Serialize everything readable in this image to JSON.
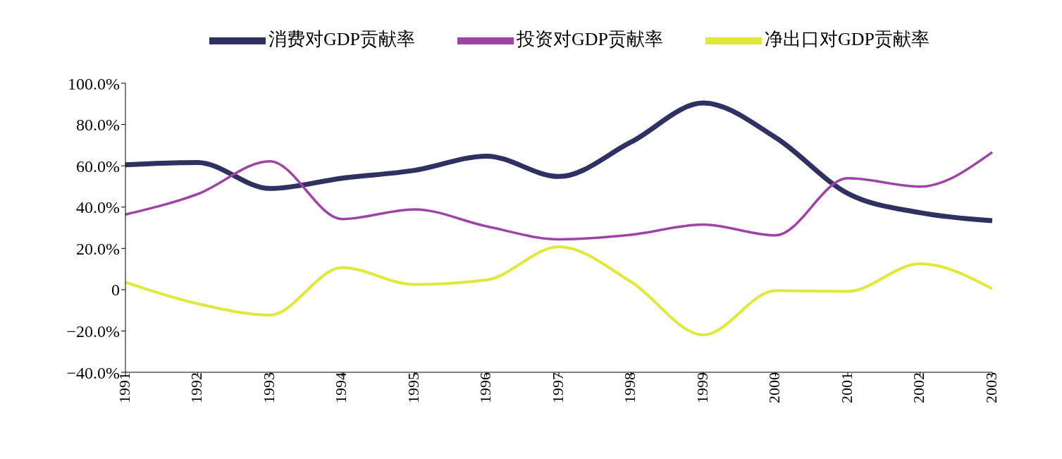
{
  "chart_data": {
    "type": "line",
    "categories": [
      "1991",
      "1992",
      "1993",
      "1994",
      "1995",
      "1996",
      "1997",
      "1998",
      "1999",
      "2000",
      "2001",
      "2002",
      "2003"
    ],
    "series": [
      {
        "name": "消费对GDP贡献率",
        "color": "#2e3162",
        "values": [
          60.5,
          61.6,
          49,
          54,
          57.8,
          64.7,
          54.8,
          71.5,
          90.4,
          73.7,
          46.6,
          37.3,
          33.4
        ]
      },
      {
        "name": "投资对GDP贡献率",
        "color": "#a043a8",
        "values": [
          36.4,
          46.3,
          62.2,
          34.2,
          38.9,
          30.7,
          24.4,
          26.6,
          31.5,
          26.3,
          54,
          49.9,
          66.6
        ]
      },
      {
        "name": "净出口对GDP贡献率",
        "color": "#e2e83a",
        "values": [
          3.6,
          -6.8,
          -12.3,
          10.7,
          2.5,
          4.7,
          20.8,
          3.8,
          -21.9,
          -0.5,
          -0.8,
          12.6,
          0.5
        ]
      }
    ],
    "ylim": [
      -40,
      100
    ],
    "yticks": [
      {
        "value": -40,
        "label": "−40.0%"
      },
      {
        "value": -20,
        "label": "−20.0%"
      },
      {
        "value": 0,
        "label": "0"
      },
      {
        "value": 20,
        "label": "20.0%"
      },
      {
        "value": 40,
        "label": "40.0%"
      },
      {
        "value": 60,
        "label": "60.0%"
      },
      {
        "value": 80,
        "label": "80.0%"
      },
      {
        "value": 100,
        "label": "100.0%"
      }
    ],
    "grid": false,
    "legend": "top",
    "marker": "none",
    "line_style": "solid"
  }
}
